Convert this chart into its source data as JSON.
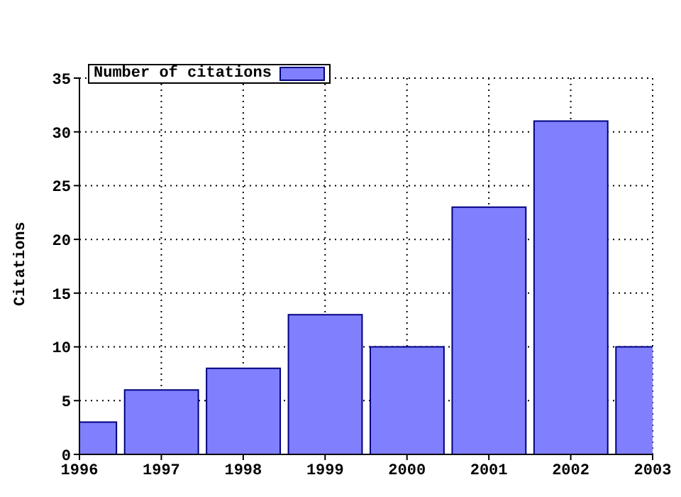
{
  "chart_data": {
    "type": "bar",
    "ylabel": "Citations",
    "x": [
      1996,
      1997,
      1998,
      1999,
      2000,
      2001,
      2002,
      2003
    ],
    "series": [
      {
        "name": "Number of citations",
        "color": "#8080ff",
        "values": [
          3,
          6,
          8,
          13,
          10,
          23,
          31,
          10
        ]
      }
    ],
    "xlim": [
      1996,
      2003
    ],
    "xticks": [
      1996,
      1997,
      1998,
      1999,
      2000,
      2001,
      2002,
      2003
    ],
    "ylim": [
      0,
      35
    ],
    "yticks": [
      0,
      5,
      10,
      15,
      20,
      25,
      30,
      35
    ],
    "grid": true,
    "legend": "top left"
  }
}
